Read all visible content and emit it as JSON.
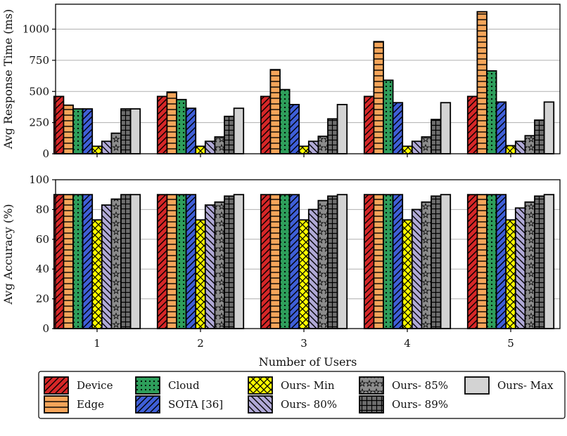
{
  "chart_data": [
    {
      "type": "bar",
      "categories": [
        "1",
        "2",
        "3",
        "4",
        "5"
      ],
      "xlabel": "",
      "ylabel": "Avg Response Time (ms)",
      "ylim": [
        0,
        1200
      ],
      "yticks": [
        0,
        250,
        500,
        750,
        1000
      ],
      "grid": "horizontal",
      "series": [
        {
          "name": "Device",
          "color": "#d62728",
          "pattern": "diagonal",
          "values": [
            460,
            460,
            460,
            460,
            460
          ]
        },
        {
          "name": "Edge",
          "color": "#f5a55a",
          "pattern": "horizontal",
          "values": [
            390,
            495,
            675,
            900,
            1140
          ]
        },
        {
          "name": "Cloud",
          "color": "#2e9e5b",
          "pattern": "dots",
          "values": [
            360,
            435,
            515,
            590,
            665
          ]
        },
        {
          "name": "SOTA [36]",
          "color": "#3f5fd8",
          "pattern": "diagonal",
          "values": [
            360,
            365,
            395,
            410,
            415
          ]
        },
        {
          "name": "Ours- Min",
          "color": "#ffff00",
          "pattern": "cross",
          "values": [
            60,
            60,
            60,
            60,
            65
          ]
        },
        {
          "name": "Ours- 80%",
          "color": "#b0a9d6",
          "pattern": "backdiagonal",
          "values": [
            100,
            100,
            100,
            100,
            100
          ]
        },
        {
          "name": "Ours- 85%",
          "color": "#8c8c8c",
          "pattern": "stars",
          "values": [
            165,
            135,
            140,
            135,
            145
          ]
        },
        {
          "name": "Ours- 89%",
          "color": "#6e6e6e",
          "pattern": "grid",
          "values": [
            360,
            300,
            280,
            275,
            270
          ]
        },
        {
          "name": "Ours- Max",
          "color": "#d3d3d3",
          "pattern": "none",
          "values": [
            360,
            365,
            395,
            410,
            415
          ]
        }
      ]
    },
    {
      "type": "bar",
      "categories": [
        "1",
        "2",
        "3",
        "4",
        "5"
      ],
      "xlabel": "Number of Users",
      "ylabel": "Avg Accuracy (%)",
      "ylim": [
        0,
        100
      ],
      "yticks": [
        0,
        20,
        40,
        60,
        80,
        100
      ],
      "grid": "horizontal",
      "series": [
        {
          "name": "Device",
          "values": [
            90,
            90,
            90,
            90,
            90
          ]
        },
        {
          "name": "Edge",
          "values": [
            90,
            90,
            90,
            90,
            90
          ]
        },
        {
          "name": "Cloud",
          "values": [
            90,
            90,
            90,
            90,
            90
          ]
        },
        {
          "name": "SOTA [36]",
          "values": [
            90,
            90,
            90,
            90,
            90
          ]
        },
        {
          "name": "Ours- Min",
          "values": [
            73,
            73,
            73,
            73,
            73
          ]
        },
        {
          "name": "Ours- 80%",
          "values": [
            83,
            83,
            80,
            80,
            81
          ]
        },
        {
          "name": "Ours- 85%",
          "values": [
            87,
            85,
            86,
            85,
            85
          ]
        },
        {
          "name": "Ours- 89%",
          "values": [
            90,
            89,
            89,
            89,
            89
          ]
        },
        {
          "name": "Ours- Max",
          "values": [
            90,
            90,
            90,
            90,
            90
          ]
        }
      ]
    }
  ],
  "legend": {
    "placement": "bottom",
    "columns": [
      [
        "Device",
        "Edge"
      ],
      [
        "Cloud",
        "SOTA [36]"
      ],
      [
        "Ours- Min",
        "Ours- 80%"
      ],
      [
        "Ours- 85%",
        "Ours- 89%"
      ],
      [
        "Ours- Max"
      ]
    ]
  }
}
